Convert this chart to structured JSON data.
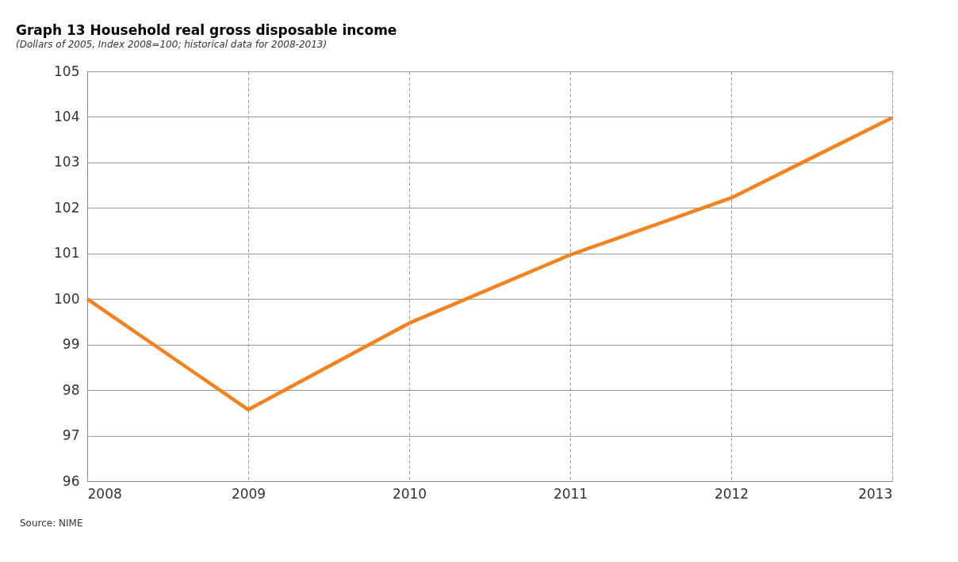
{
  "chart_data": {
    "type": "line",
    "title": "Graph 13   Household real gross disposable income",
    "subtitle": "(Dollars of 2005, Index 2008=100; historical data for 2008-2013)",
    "x": [
      2008,
      2009,
      2010,
      2011,
      2012,
      2013
    ],
    "series": [
      {
        "color": "#f5821f",
        "values": [
          100,
          97.57,
          99.47,
          100.97,
          102.22,
          103.98
        ]
      }
    ],
    "xlim": [
      2008,
      2013
    ],
    "xticks": [
      2008,
      2009,
      2010,
      2011,
      2012,
      2013
    ],
    "ylim": [
      96,
      105
    ],
    "yticks": [
      96,
      97,
      98,
      99,
      100,
      101,
      102,
      103,
      104,
      105
    ],
    "grid": true,
    "marker": "none",
    "line_style": "solid",
    "annotations": [
      "Source: NIME"
    ]
  }
}
